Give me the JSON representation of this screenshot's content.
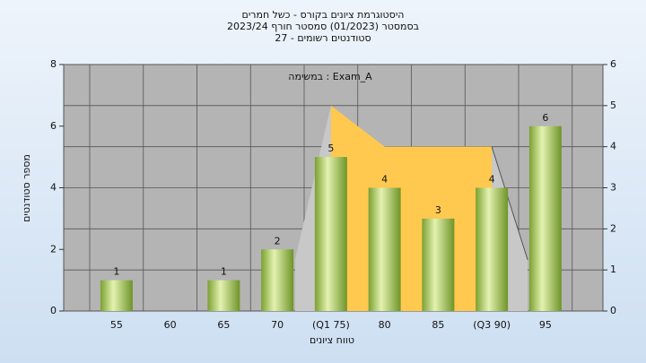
{
  "chart_data": {
    "type": "bar",
    "title_lines": [
      "היסטוגרמת ציונים בקורס - כשל חמרים",
      "בסמסטר (01/2023) סמסטר חורף 2023/24",
      "סטודנטים רשומים - 27"
    ],
    "annotation": "במשימה : Exam_A",
    "x_label": "טווח ציונים",
    "y_label": "מספר סטודנטים",
    "categories": [
      "55",
      "60",
      "65",
      "70",
      "(Q1 75)",
      "80",
      "85",
      "(Q3 90)",
      "95"
    ],
    "series": [
      {
        "values": [
          1,
          0,
          1,
          2,
          5,
          4,
          3,
          4,
          6
        ],
        "color": "#8cb43c"
      },
      {
        "values": [
          null,
          null,
          null,
          null,
          5,
          4,
          4,
          4,
          null
        ],
        "color": "#ffc94f",
        "axis": "y2"
      }
    ],
    "ylim": [
      0,
      8
    ],
    "yticks": [
      0,
      2,
      4,
      6,
      8
    ],
    "y2lim": [
      0,
      6
    ],
    "y2ticks": [
      0,
      1,
      2,
      3,
      4,
      5,
      6
    ],
    "grid": true
  }
}
